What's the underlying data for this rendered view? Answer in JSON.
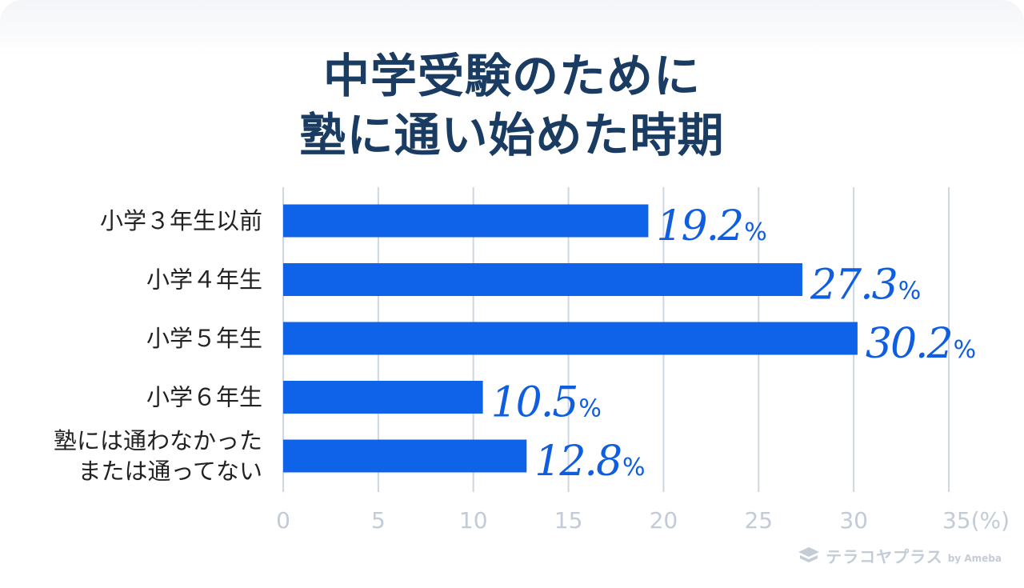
{
  "title_lines": [
    "中学受験のために",
    "塾に通い始めた時期"
  ],
  "brand": {
    "name": "テラコヤプラス",
    "suffix": "by Ameba"
  },
  "colors": {
    "bar": "#0f63e8",
    "title": "#1a3c63",
    "value": "#0f5ee0",
    "axis": "#cdd6e2",
    "category": "#222222"
  },
  "chart_data": {
    "type": "bar",
    "orientation": "horizontal",
    "categories": [
      [
        "小学３年生以前"
      ],
      [
        "小学４年生"
      ],
      [
        "小学５年生"
      ],
      [
        "小学６年生"
      ],
      [
        "塾には通わなかった",
        "または通ってない"
      ]
    ],
    "values": [
      19.2,
      27.3,
      30.2,
      10.5,
      12.8
    ],
    "value_suffix": "%",
    "xlim": [
      0,
      35
    ],
    "xticks": [
      "0",
      "5",
      "10",
      "15",
      "20",
      "25",
      "30",
      "35(%)"
    ],
    "grid": true
  }
}
